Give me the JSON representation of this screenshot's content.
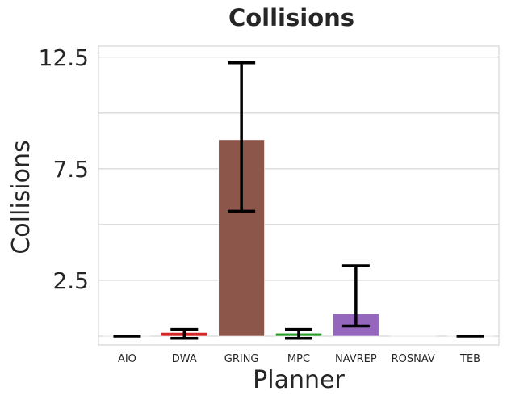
{
  "chart_data": {
    "type": "bar",
    "title": "Collisions",
    "xlabel": "Planner",
    "ylabel": "Collisions",
    "categories": [
      "AIO",
      "DWA",
      "GRING",
      "MPC",
      "NAVREP",
      "ROSNAV",
      "TEB"
    ],
    "values": [
      0.0,
      0.1,
      8.8,
      0.07,
      1.0,
      0.0,
      0.0
    ],
    "error_low": [
      0.0,
      -0.1,
      5.6,
      -0.1,
      0.45,
      0.0,
      0.0
    ],
    "error_high": [
      0.0,
      0.3,
      12.25,
      0.3,
      3.15,
      0.0,
      0.0
    ],
    "colors": [
      "#1f77b4",
      "#d62728",
      "#8c564b",
      "#2ca02c",
      "#9467bd",
      "#e377c2",
      "#17becf"
    ],
    "yticks": [
      2.5,
      7.5,
      12.5
    ],
    "yticklabels": [
      "2.5",
      "7.5",
      "12.5"
    ],
    "ylim": [
      -0.4,
      13.0
    ],
    "grid": true,
    "gridlines": [
      0,
      2.5,
      5,
      7.5,
      10,
      12.5
    ]
  }
}
